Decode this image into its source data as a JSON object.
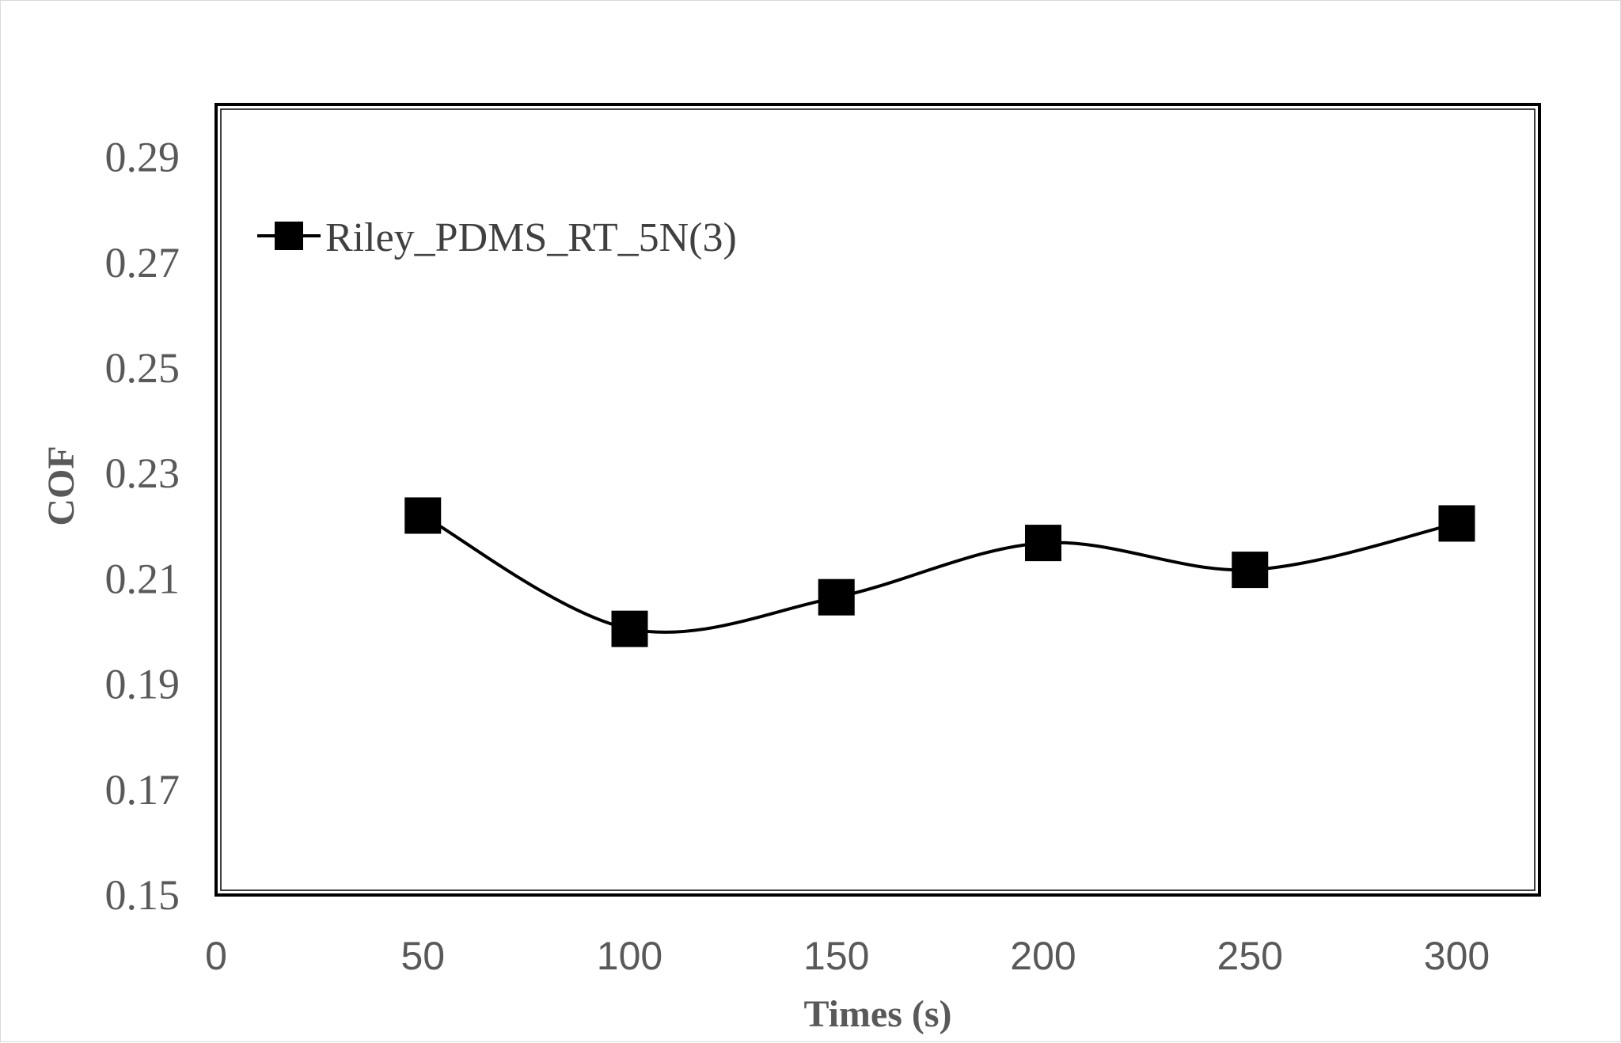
{
  "chart_data": {
    "type": "line",
    "title": "",
    "xlabel": "Times (s)",
    "ylabel": "COF",
    "xlim": [
      0,
      320
    ],
    "ylim": [
      0.15,
      0.3
    ],
    "x_ticks": [
      "0",
      "50",
      "100",
      "150",
      "200",
      "250",
      "300"
    ],
    "y_ticks": [
      "0.15",
      "0.17",
      "0.19",
      "0.21",
      "0.23",
      "0.25",
      "0.27",
      "0.29"
    ],
    "grid": false,
    "legend_position": "top-left",
    "smooth": true,
    "series": [
      {
        "name": "Riley_PDMS_RT_5N(3)",
        "color": "#000000",
        "marker": "square",
        "x": [
          50,
          100,
          150,
          200,
          250,
          300
        ],
        "y": [
          0.222,
          0.2005,
          0.2065,
          0.2168,
          0.2117,
          0.2205
        ]
      }
    ]
  }
}
